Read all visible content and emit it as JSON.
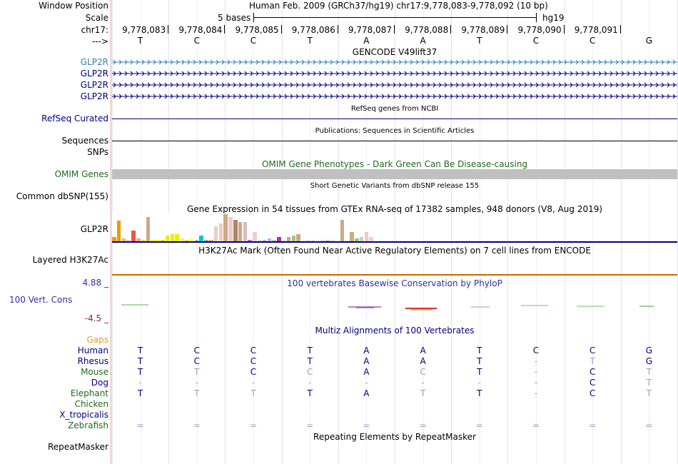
{
  "header": {
    "window_position_label": "Window Position",
    "window_position_value": "Human Feb. 2009 (GRCh37/hg19)   chr17:9,778,083-9,778,092 (10 bp)",
    "scale_label": "Scale",
    "scale_value": "5 bases",
    "assembly": "hg19",
    "chrom_label": "chr17:",
    "strand_label": "--->",
    "positions": [
      "9,778,083",
      "9,778,084",
      "9,778,085",
      "9,778,086",
      "9,778,087",
      "9,778,088",
      "9,778,089",
      "9,778,090",
      "9,778,091"
    ],
    "bases": [
      "T",
      "C",
      "C",
      "T",
      "A",
      "A",
      "T",
      "C",
      "C",
      "G"
    ]
  },
  "tracks": {
    "gencode": {
      "title": "GENCODE V49lift37",
      "genes": [
        "GLP2R",
        "GLP2R",
        "GLP2R",
        "GLP2R"
      ],
      "first_color": "#3080b0",
      "color": "#000080"
    },
    "refseq": {
      "label": "RefSeq Curated",
      "title": "RefSeq genes from NCBI"
    },
    "publications": {
      "title": "Publications: Sequences in Scientific Articles",
      "label_1": "Sequences",
      "label_2": "SNPs"
    },
    "omim": {
      "title": "OMIM Gene Phenotypes - Dark Green Can Be Disease-causing",
      "label": "OMIM Genes",
      "color": "#1e6b1e"
    },
    "dbsnp": {
      "title": "Short Genetic Variants from dbSNP release 155",
      "label": "Common dbSNP(155)"
    },
    "gtex": {
      "title": "Gene Expression in 54 tissues from GTEx RNA-seq of 17382 samples, 948 donors (V8, Aug 2019)",
      "label": "GLP2R",
      "bars": [
        {
          "value": 0.15,
          "color": "#ff9900"
        },
        {
          "value": 0.75,
          "color": "#ee9a00"
        },
        {
          "value": 0.1,
          "color": "#ffaa88"
        },
        {
          "value": 0.05,
          "color": "#ccccff"
        },
        {
          "value": 0.4,
          "color": "#ee5544"
        },
        {
          "value": 0.1,
          "color": "#ff9999"
        },
        {
          "value": 0.05,
          "color": "#eedd00"
        },
        {
          "value": 0.9,
          "color": "#ccaa88"
        },
        {
          "value": 0.05,
          "color": "#eeee00"
        },
        {
          "value": 0.05,
          "color": "#eeee00"
        },
        {
          "value": 0.05,
          "color": "#e8dd00"
        },
        {
          "value": 0.2,
          "color": "#eeee00"
        },
        {
          "value": 0.25,
          "color": "#eeee00"
        },
        {
          "value": 0.25,
          "color": "#eeee00"
        },
        {
          "value": 0.1,
          "color": "#eeee88"
        },
        {
          "value": 0.05,
          "color": "#eeee00"
        },
        {
          "value": 0.1,
          "color": "#ffff66"
        },
        {
          "value": 0.05,
          "color": "#bbbbbb"
        },
        {
          "value": 0.2,
          "color": "#00cccc"
        },
        {
          "value": 0.05,
          "color": "#aaaaaa"
        },
        {
          "value": 0.05,
          "color": "#ccaa88"
        },
        {
          "value": 0.55,
          "color": "#eecccc"
        },
        {
          "value": 0.65,
          "color": "#eeccbb"
        },
        {
          "value": 1.0,
          "color": "#ccaa88"
        },
        {
          "value": 0.9,
          "color": "#eecccc"
        },
        {
          "value": 0.8,
          "color": "#aa8866"
        },
        {
          "value": 0.7,
          "color": "#ccaa88"
        },
        {
          "value": 0.7,
          "color": "#ddbbbb"
        },
        {
          "value": 0.05,
          "color": "#cc66cc"
        },
        {
          "value": 0.35,
          "color": "#eecccc"
        },
        {
          "value": 0.05,
          "color": "#dddddd"
        },
        {
          "value": 0.05,
          "color": "#bbbbbb"
        },
        {
          "value": 0.1,
          "color": "#ccaaff"
        },
        {
          "value": 0.05,
          "color": "#aaccaa"
        },
        {
          "value": 0.15,
          "color": "#aa33aa"
        },
        {
          "value": 0.05,
          "color": "#dddddd"
        },
        {
          "value": 0.15,
          "color": "#cc99cc"
        },
        {
          "value": 0.2,
          "color": "#99cc66"
        },
        {
          "value": 0.25,
          "color": "#ccaa88"
        },
        {
          "value": 0.05,
          "color": "#eeeeee"
        },
        {
          "value": 0.05,
          "color": "#dddddd"
        },
        {
          "value": 0.05,
          "color": "#dddddd"
        },
        {
          "value": 0.05,
          "color": "#eeeeee"
        },
        {
          "value": 0.05,
          "color": "#dddddd"
        },
        {
          "value": 0.05,
          "color": "#cccccc"
        },
        {
          "value": 0.05,
          "color": "#dddddd"
        },
        {
          "value": 0.05,
          "color": "#eeeeee"
        },
        {
          "value": 0.8,
          "color": "#ccaa88"
        },
        {
          "value": 0.05,
          "color": "#eeeeee"
        },
        {
          "value": 0.35,
          "color": "#ccaa88"
        },
        {
          "value": 0.1,
          "color": "#99cc66"
        },
        {
          "value": 0.15,
          "color": "#cccccc"
        },
        {
          "value": 0.35,
          "color": "#eeccbb"
        },
        {
          "value": 0.15,
          "color": "#eecccc"
        }
      ]
    },
    "h3k27ac": {
      "title": "H3K27Ac Mark (Often Found Near Active Regulatory Elements) on 7 cell lines from ENCODE",
      "label": "Layered H3K27Ac"
    },
    "phylop": {
      "title": "100 vertebrates Basewise Conservation by PhyloP",
      "label": "100 Vert. Cons",
      "max": "4.88 _",
      "min": "-4.5 _"
    },
    "multiz": {
      "title": "Multiz Alignments of 100 Vertebrates",
      "gaps_label": "Gaps",
      "species": [
        {
          "name": "Human",
          "color": "#000080",
          "bases": [
            "T",
            "C",
            "C",
            "T",
            "A",
            "A",
            "T",
            "C",
            "C",
            "G"
          ],
          "faint": [
            false,
            false,
            false,
            false,
            false,
            false,
            false,
            false,
            false,
            false
          ]
        },
        {
          "name": "Rhesus",
          "color": "#000080",
          "bases": [
            "T",
            "C",
            "C",
            "T",
            "A",
            "A",
            "T",
            "-",
            "T",
            "G"
          ],
          "faint": [
            false,
            false,
            false,
            false,
            false,
            false,
            false,
            true,
            true,
            false
          ]
        },
        {
          "name": "Mouse",
          "color": "#1e6b1e",
          "bases": [
            "T",
            "T",
            "C",
            "C",
            "A",
            "C",
            "T",
            "-",
            "C",
            "T"
          ],
          "faint": [
            false,
            true,
            false,
            true,
            false,
            true,
            false,
            true,
            false,
            true
          ]
        },
        {
          "name": "Dog",
          "color": "#000080",
          "bases": [
            "-",
            "-",
            "-",
            "-",
            "-",
            "-",
            "-",
            "-",
            "C",
            "T"
          ],
          "faint": [
            true,
            true,
            true,
            true,
            true,
            true,
            true,
            true,
            false,
            true
          ]
        },
        {
          "name": "Elephant",
          "color": "#1e6b1e",
          "bases": [
            "T",
            "T",
            "T",
            "T",
            "A",
            "T",
            "T",
            "-",
            "C",
            "T"
          ],
          "faint": [
            false,
            true,
            true,
            false,
            false,
            true,
            false,
            true,
            false,
            true
          ]
        },
        {
          "name": "Chicken",
          "color": "#1e6b1e",
          "bases": [
            "",
            "",
            "",
            "",
            "",
            "",
            "",
            "",
            "",
            ""
          ],
          "faint": [
            false,
            false,
            false,
            false,
            false,
            false,
            false,
            false,
            false,
            false
          ]
        },
        {
          "name": "X_tropicalis",
          "color": "#000080",
          "bases": [
            "",
            "",
            "",
            "",
            "",
            "",
            "",
            "",
            "",
            ""
          ],
          "faint": [
            false,
            false,
            false,
            false,
            false,
            false,
            false,
            false,
            false,
            false
          ]
        },
        {
          "name": "Zebrafish",
          "color": "#1e6b1e",
          "bases": [
            "=",
            "=",
            "=",
            "=",
            "=",
            "=",
            "=",
            "=",
            "=",
            "="
          ],
          "faint": [
            true,
            true,
            true,
            true,
            true,
            true,
            true,
            true,
            true,
            true
          ]
        }
      ]
    },
    "repeatmasker": {
      "title": "Repeating Elements by RepeatMasker",
      "label": "RepeatMasker"
    }
  },
  "colors": {
    "navy": "#000080",
    "green": "#1e6b1e",
    "gaps": "#e6a020",
    "phylop_max": "#3030a0",
    "phylop_min": "#a02020",
    "faint_base": "#9aa0c8",
    "omim_bar": "#c0c0c0",
    "h3k27ac_line": "#cc6600"
  }
}
